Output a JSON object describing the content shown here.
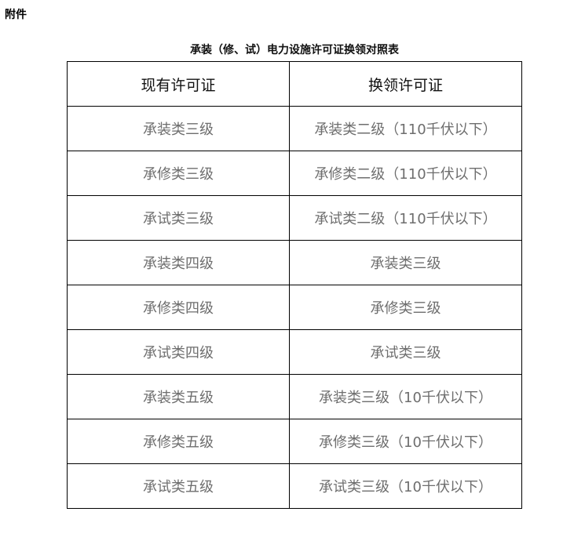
{
  "attachment_label": "附件",
  "title": "承装（修、试）电力设施许可证换领对照表",
  "headers": [
    "现有许可证",
    "换领许可证"
  ],
  "rows": [
    [
      "承装类三级",
      "承装类二级（110千伏以下）"
    ],
    [
      "承修类三级",
      "承修类二级（110千伏以下）"
    ],
    [
      "承试类三级",
      "承试类二级（110千伏以下）"
    ],
    [
      "承装类四级",
      "承装类三级"
    ],
    [
      "承修类四级",
      "承修类三级"
    ],
    [
      "承试类四级",
      "承试类三级"
    ],
    [
      "承装类五级",
      "承装类三级（10千伏以下）"
    ],
    [
      "承修类五级",
      "承修类三级（10千伏以下）"
    ],
    [
      "承试类五级",
      "承试类三级（10千伏以下）"
    ]
  ]
}
